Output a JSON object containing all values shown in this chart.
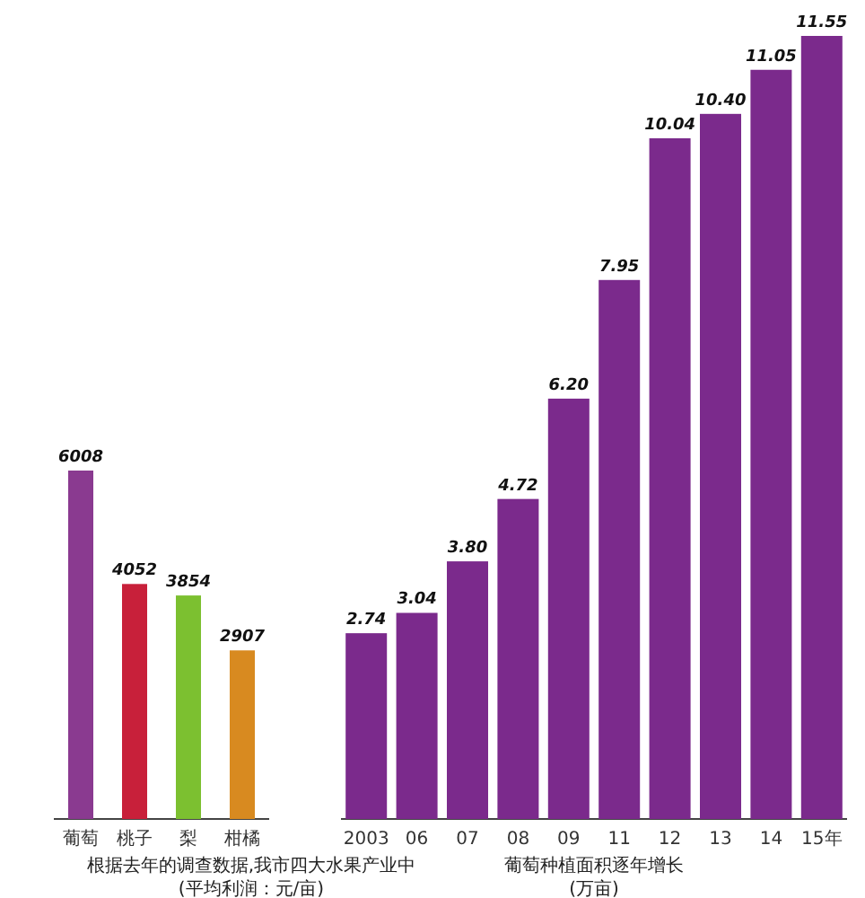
{
  "chart_data": [
    {
      "type": "bar",
      "categories": [
        "葡萄",
        "桃子",
        "梨",
        "柑橘"
      ],
      "values": [
        6008,
        4052,
        3854,
        2907
      ],
      "colors": [
        "#8a3a90",
        "#c8203a",
        "#7cc030",
        "#d88a20"
      ],
      "data_labels": true,
      "annotations": [
        "根据去年的调查数据,我市四大水果产业中",
        "(平均利润：元/亩)"
      ]
    },
    {
      "type": "bar",
      "categories": [
        "2003",
        "06",
        "07",
        "08",
        "09",
        "11",
        "12",
        "13",
        "14",
        "15年"
      ],
      "values": [
        2.74,
        3.04,
        3.8,
        4.72,
        6.2,
        7.95,
        10.04,
        10.4,
        11.05,
        11.55
      ],
      "color": "#7b2a8c",
      "value_labels": [
        "2.74",
        "3.04",
        "3.80",
        "4.72",
        "6.20",
        "7.95",
        "10.04",
        "10.40",
        "11.05",
        "11.55"
      ],
      "annotations": [
        "葡萄种植面积逐年增长",
        "(万亩)"
      ]
    }
  ]
}
